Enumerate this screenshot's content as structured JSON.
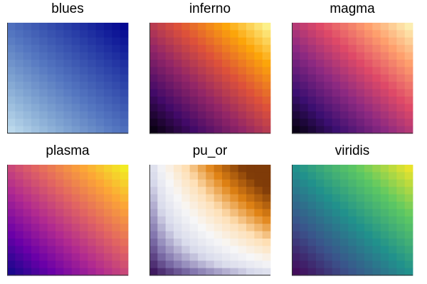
{
  "chart_data": [
    {
      "type": "heatmap",
      "title": "blues",
      "colormap": "blues",
      "grid": [
        15,
        15
      ],
      "stops": [
        "#c6e2f0",
        "#8aaed6",
        "#5577c0",
        "#2a40a8",
        "#00008e"
      ]
    },
    {
      "type": "heatmap",
      "title": "inferno",
      "colormap": "inferno",
      "grid": [
        15,
        15
      ],
      "stops": [
        "#000004",
        "#420a68",
        "#932667",
        "#dd513a",
        "#fca50a",
        "#fcffa4"
      ]
    },
    {
      "type": "heatmap",
      "title": "magma",
      "colormap": "magma",
      "grid": [
        15,
        15
      ],
      "stops": [
        "#000004",
        "#3b0f70",
        "#8c2981",
        "#de4968",
        "#fe9f6d",
        "#fcfdbf"
      ]
    },
    {
      "type": "heatmap",
      "title": "plasma",
      "colormap": "plasma",
      "grid": [
        15,
        15
      ],
      "stops": [
        "#0d0887",
        "#6a00a8",
        "#b12a90",
        "#e16462",
        "#fca636",
        "#f0f921"
      ]
    },
    {
      "type": "heatmap",
      "title": "pu_or",
      "colormap": "pu_or",
      "grid": [
        15,
        15
      ],
      "stops": [
        "#2d004b",
        "#8073ac",
        "#d8daeb",
        "#f7f7f7",
        "#fee0b6",
        "#e08214",
        "#7f3b08"
      ]
    },
    {
      "type": "heatmap",
      "title": "viridis",
      "colormap": "viridis",
      "grid": [
        15,
        15
      ],
      "stops": [
        "#440154",
        "#3b528b",
        "#21918c",
        "#5ec962",
        "#fde725"
      ]
    }
  ]
}
